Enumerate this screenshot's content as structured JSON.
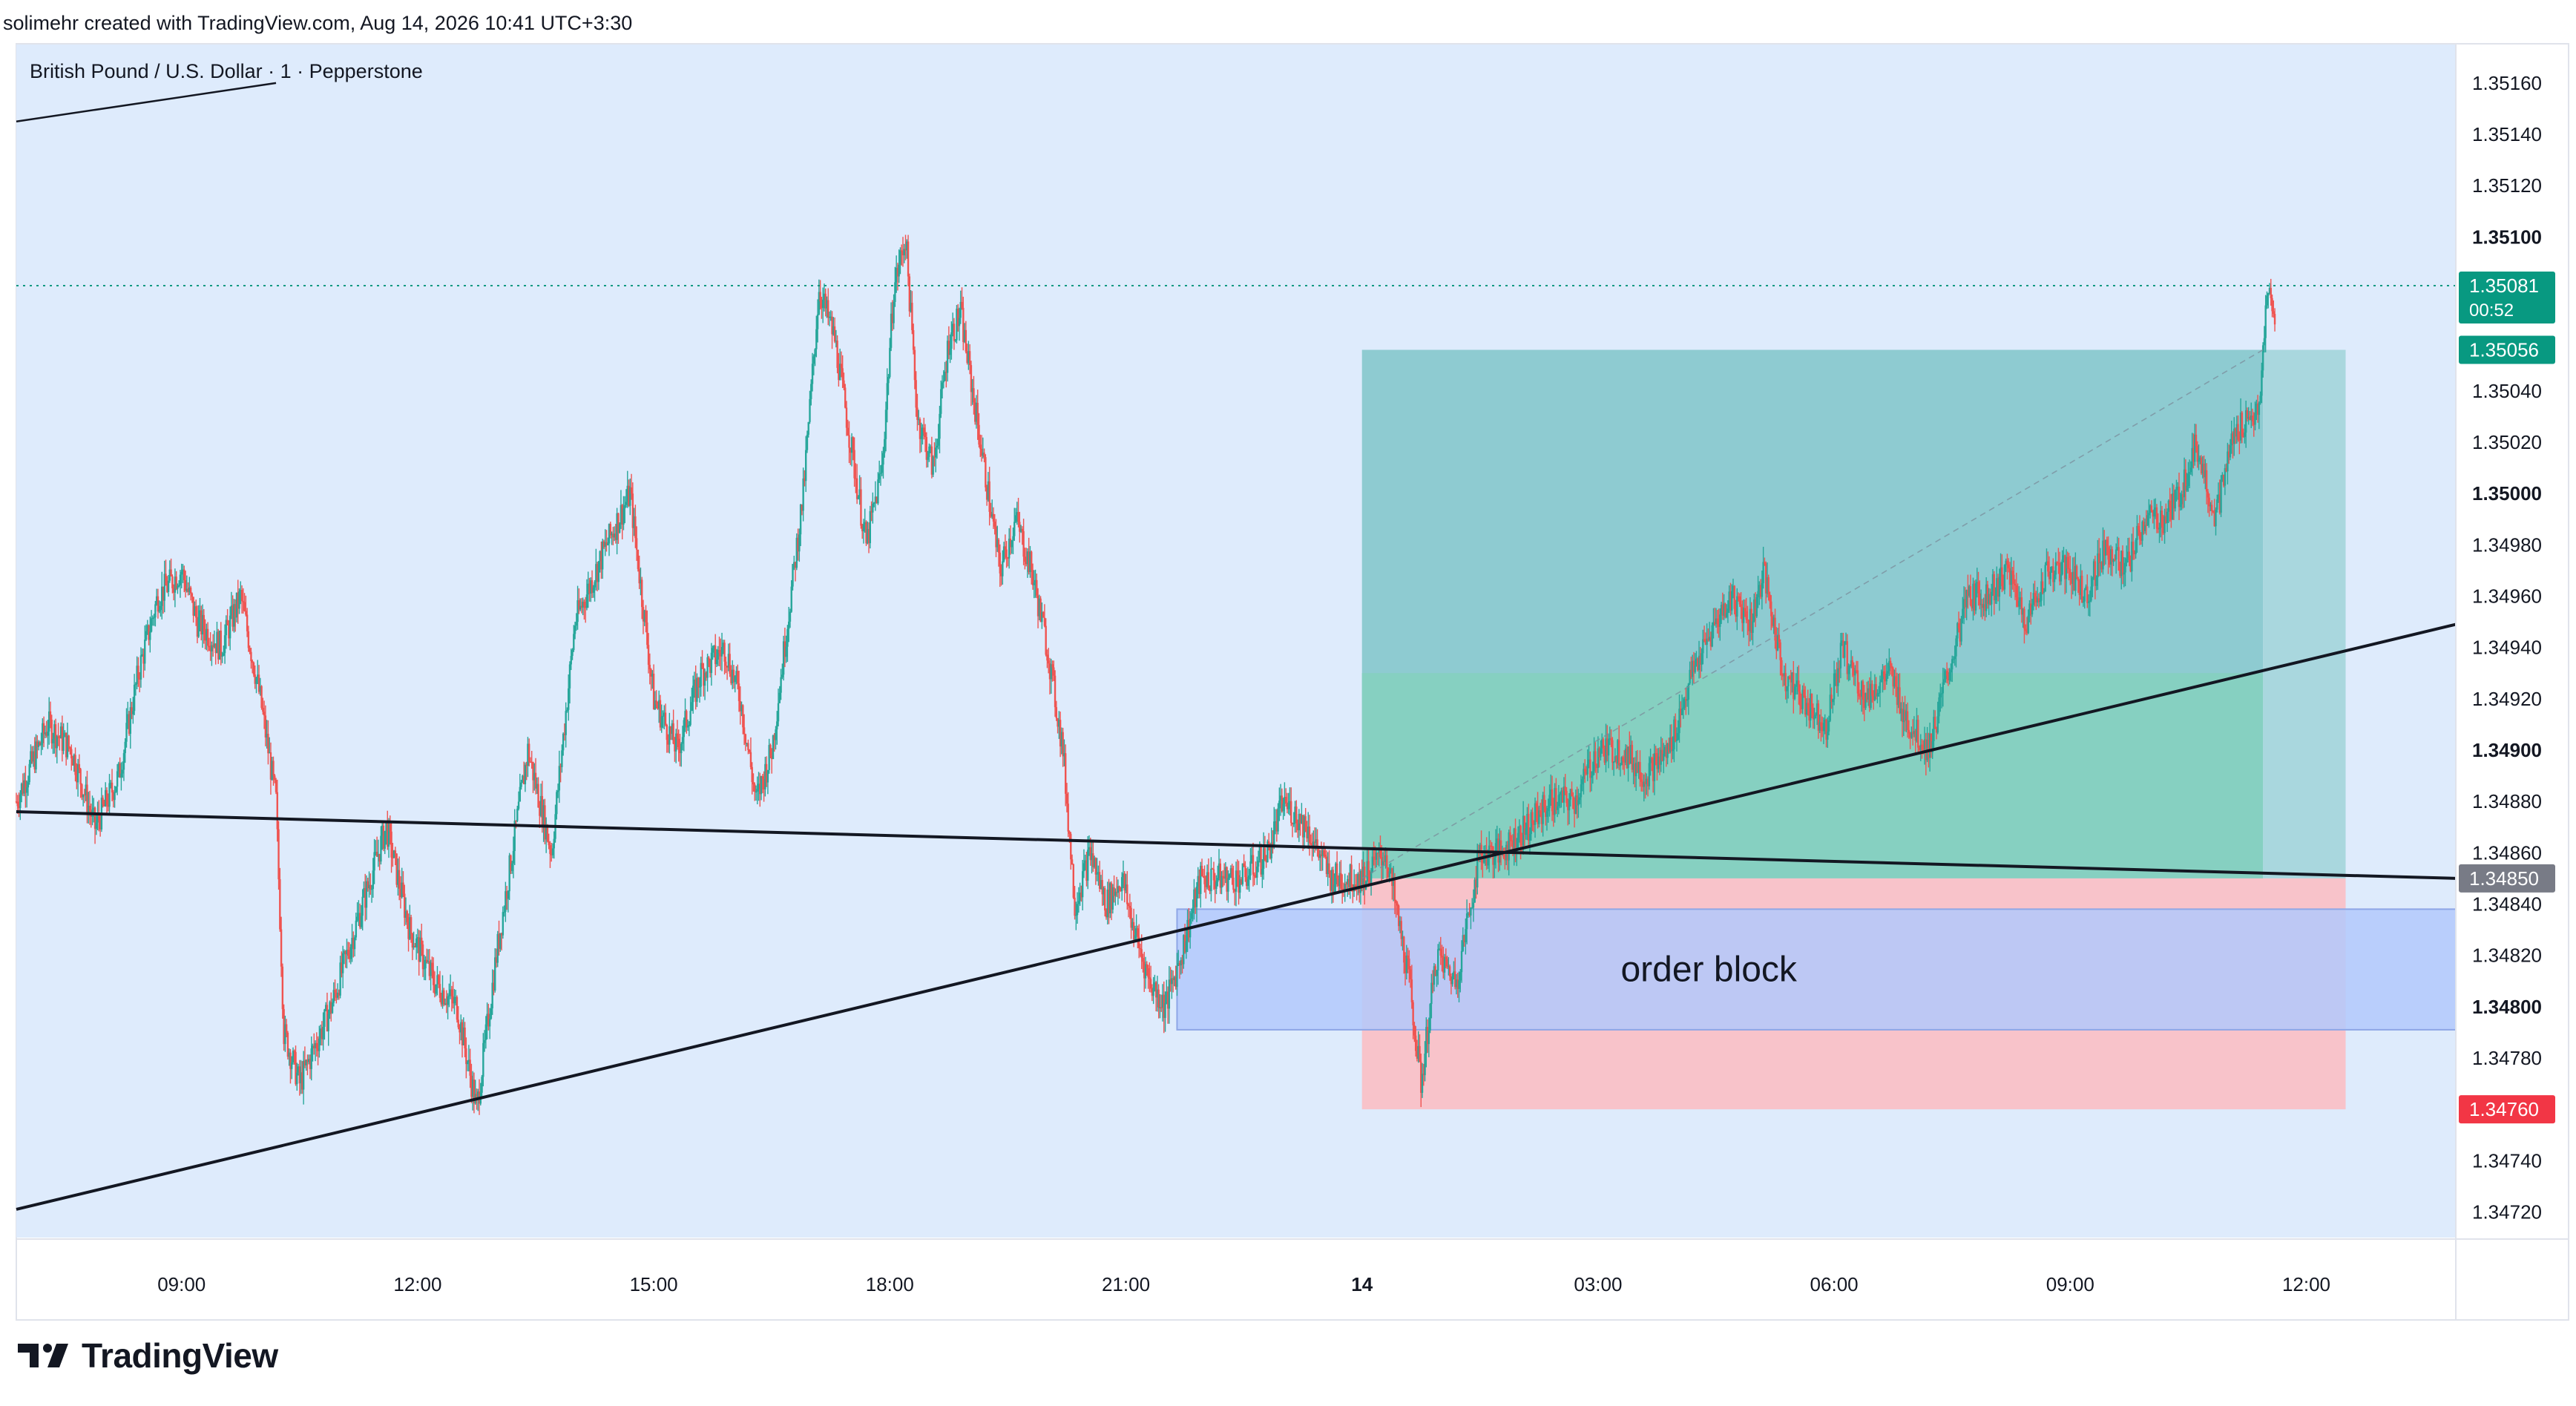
{
  "header": {
    "credit": "solimehr created with TradingView.com, Aug 14, 2026 10:41 UTC+3:30"
  },
  "footer": {
    "brand": "TradingView"
  },
  "colors": {
    "up": "#26a69a",
    "down": "#ef5350",
    "background_zone": "#deebfc",
    "target_zone": "#89c9cf",
    "stop_zone": "#f9c1c7",
    "order_block": "#b3c9fb"
  },
  "chart_data": {
    "type": "candlestick",
    "title": "British Pound / U.S. Dollar · 1 · Pepperstone",
    "ylim": [
      1.3471,
      1.35175
    ],
    "x_ticks": [
      {
        "label": "09:00",
        "t": 9.0
      },
      {
        "label": "12:00",
        "t": 12.0
      },
      {
        "label": "15:00",
        "t": 15.0
      },
      {
        "label": "18:00",
        "t": 18.0
      },
      {
        "label": "21:00",
        "t": 21.0
      },
      {
        "label": "14",
        "t": 24.0,
        "bold": true
      },
      {
        "label": "03:00",
        "t": 27.0
      },
      {
        "label": "06:00",
        "t": 30.0
      },
      {
        "label": "09:00",
        "t": 33.0
      },
      {
        "label": "12:00",
        "t": 36.0
      }
    ],
    "y_ticks": [
      {
        "label": "1.35160",
        "v": 1.3516
      },
      {
        "label": "1.35140",
        "v": 1.3514
      },
      {
        "label": "1.35120",
        "v": 1.3512
      },
      {
        "label": "1.35100",
        "v": 1.351,
        "bold": true
      },
      {
        "label": "1.35040",
        "v": 1.3504
      },
      {
        "label": "1.35020",
        "v": 1.3502
      },
      {
        "label": "1.35000",
        "v": 1.35,
        "bold": true
      },
      {
        "label": "1.34980",
        "v": 1.3498
      },
      {
        "label": "1.34960",
        "v": 1.3496
      },
      {
        "label": "1.34940",
        "v": 1.3494
      },
      {
        "label": "1.34920",
        "v": 1.3492
      },
      {
        "label": "1.34900",
        "v": 1.349,
        "bold": true
      },
      {
        "label": "1.34880",
        "v": 1.3488
      },
      {
        "label": "1.34860",
        "v": 1.3486
      },
      {
        "label": "1.34840",
        "v": 1.3484
      },
      {
        "label": "1.34820",
        "v": 1.3482
      },
      {
        "label": "1.34800",
        "v": 1.348,
        "bold": true
      },
      {
        "label": "1.34780",
        "v": 1.3478
      },
      {
        "label": "1.34740",
        "v": 1.3474
      },
      {
        "label": "1.34720",
        "v": 1.3472
      }
    ],
    "price_tags": [
      {
        "label": "1.35081",
        "sub": "00:52",
        "v": 1.35081,
        "color": "#089981"
      },
      {
        "label": "1.35056",
        "v": 1.35056,
        "color": "#089981"
      },
      {
        "label": "1.34850",
        "v": 1.3485,
        "color": "#787b86"
      },
      {
        "label": "1.34760",
        "v": 1.3476,
        "color": "#f23645"
      }
    ],
    "current_price": 1.35081,
    "price_path": [
      [
        6.9,
        1.3488
      ],
      [
        7.3,
        1.3491
      ],
      [
        7.6,
        1.349
      ],
      [
        7.9,
        1.3487
      ],
      [
        8.2,
        1.3489
      ],
      [
        8.45,
        1.3493
      ],
      [
        8.7,
        1.3496
      ],
      [
        9.0,
        1.3497
      ],
      [
        9.2,
        1.3495
      ],
      [
        9.5,
        1.3494
      ],
      [
        9.75,
        1.3496
      ],
      [
        10.0,
        1.3492
      ],
      [
        10.2,
        1.3488
      ],
      [
        10.3,
        1.3479
      ],
      [
        10.5,
        1.3477
      ],
      [
        10.9,
        1.348
      ],
      [
        11.3,
        1.3484
      ],
      [
        11.6,
        1.3487
      ],
      [
        11.9,
        1.3483
      ],
      [
        12.2,
        1.3481
      ],
      [
        12.5,
        1.348
      ],
      [
        12.75,
        1.3476
      ],
      [
        13.0,
        1.3482
      ],
      [
        13.4,
        1.349
      ],
      [
        13.7,
        1.3486
      ],
      [
        14.0,
        1.3495
      ],
      [
        14.4,
        1.3498
      ],
      [
        14.7,
        1.35
      ],
      [
        15.0,
        1.3492
      ],
      [
        15.3,
        1.349
      ],
      [
        15.6,
        1.3493
      ],
      [
        15.9,
        1.3494
      ],
      [
        16.1,
        1.3492
      ],
      [
        16.3,
        1.3488
      ],
      [
        16.5,
        1.349
      ],
      [
        16.7,
        1.3495
      ],
      [
        16.9,
        1.35
      ],
      [
        17.1,
        1.3508
      ],
      [
        17.3,
        1.3506
      ],
      [
        17.5,
        1.3502
      ],
      [
        17.7,
        1.3498
      ],
      [
        17.9,
        1.3501
      ],
      [
        18.05,
        1.3508
      ],
      [
        18.2,
        1.351
      ],
      [
        18.35,
        1.3503
      ],
      [
        18.55,
        1.3501
      ],
      [
        18.75,
        1.3506
      ],
      [
        18.9,
        1.3507
      ],
      [
        19.15,
        1.3502
      ],
      [
        19.4,
        1.3497
      ],
      [
        19.6,
        1.3499
      ],
      [
        19.8,
        1.3497
      ],
      [
        20.0,
        1.3494
      ],
      [
        20.2,
        1.349
      ],
      [
        20.35,
        1.3484
      ],
      [
        20.55,
        1.3486
      ],
      [
        20.75,
        1.3484
      ],
      [
        20.95,
        1.3485
      ],
      [
        21.1,
        1.3483
      ],
      [
        21.3,
        1.3481
      ],
      [
        21.5,
        1.348
      ],
      [
        21.7,
        1.3482
      ],
      [
        21.95,
        1.3485
      ],
      [
        22.2,
        1.3485
      ],
      [
        22.5,
        1.3485
      ],
      [
        22.8,
        1.3486
      ],
      [
        23.0,
        1.3488
      ],
      [
        23.3,
        1.3487
      ],
      [
        23.6,
        1.3485
      ],
      [
        24.0,
        1.3485
      ],
      [
        24.3,
        1.3486
      ],
      [
        24.6,
        1.3481
      ],
      [
        24.75,
        1.3477
      ],
      [
        24.95,
        1.3482
      ],
      [
        25.2,
        1.3481
      ],
      [
        25.5,
        1.3486
      ],
      [
        25.75,
        1.3486
      ],
      [
        26.1,
        1.3487
      ],
      [
        26.4,
        1.3488
      ],
      [
        26.7,
        1.3488
      ],
      [
        27.0,
        1.349
      ],
      [
        27.3,
        1.349
      ],
      [
        27.6,
        1.3489
      ],
      [
        27.9,
        1.349
      ],
      [
        28.2,
        1.3493
      ],
      [
        28.5,
        1.3495
      ],
      [
        28.7,
        1.3496
      ],
      [
        28.95,
        1.3495
      ],
      [
        29.1,
        1.3497
      ],
      [
        29.35,
        1.3493
      ],
      [
        29.6,
        1.3492
      ],
      [
        29.9,
        1.3491
      ],
      [
        30.1,
        1.3494
      ],
      [
        30.4,
        1.3492
      ],
      [
        30.7,
        1.3493
      ],
      [
        30.95,
        1.3491
      ],
      [
        31.2,
        1.349
      ],
      [
        31.45,
        1.3493
      ],
      [
        31.7,
        1.3496
      ],
      [
        31.95,
        1.3496
      ],
      [
        32.2,
        1.3497
      ],
      [
        32.45,
        1.3495
      ],
      [
        32.7,
        1.3497
      ],
      [
        33.0,
        1.3497
      ],
      [
        33.2,
        1.3496
      ],
      [
        33.45,
        1.3498
      ],
      [
        33.7,
        1.3497
      ],
      [
        33.95,
        1.3499
      ],
      [
        34.2,
        1.3499
      ],
      [
        34.4,
        1.35
      ],
      [
        34.6,
        1.3502
      ],
      [
        34.85,
        1.3499
      ],
      [
        35.05,
        1.3502
      ],
      [
        35.25,
        1.3503
      ],
      [
        35.4,
        1.3503
      ],
      [
        35.5,
        1.3508
      ],
      [
        35.6,
        1.35066
      ]
    ],
    "trendlines": [
      {
        "name": "upper-left-line",
        "p1": [
          6.9,
          1.35145
        ],
        "p2": [
          10.2,
          1.3516
        ]
      },
      {
        "name": "descending-line",
        "p1": [
          6.9,
          1.34876
        ],
        "p2": [
          37.9,
          1.3485
        ]
      },
      {
        "name": "rising-line",
        "p1": [
          6.9,
          1.34721
        ],
        "p2": [
          37.9,
          1.34949
        ]
      }
    ],
    "zones": [
      {
        "name": "background-zone",
        "t1": 6.9,
        "t2": 37.9,
        "v1": 1.3471,
        "v2": 1.35175,
        "color": "#deebfc"
      },
      {
        "name": "target-zone",
        "t1": 24.0,
        "t2": 35.45,
        "v1": 1.3485,
        "v2": 1.35056,
        "color": "#89c9cf"
      },
      {
        "name": "target-filled",
        "t1": 24.0,
        "t2": 35.45,
        "v1": 1.3485,
        "v2": 1.3493,
        "color": "#86d0c1"
      },
      {
        "name": "target-pale",
        "t1": 35.45,
        "t2": 36.5,
        "v1": 1.3485,
        "v2": 1.35056,
        "color": "#a9d7de"
      },
      {
        "name": "stop-zone",
        "t1": 24.0,
        "t2": 36.5,
        "v1": 1.3476,
        "v2": 1.3485,
        "color": "#f9c1c7"
      },
      {
        "name": "order-block",
        "t1": 21.65,
        "t2": 37.9,
        "v1": 1.34791,
        "v2": 1.34838,
        "color": "#b3c9fb",
        "label": "order block"
      }
    ]
  }
}
